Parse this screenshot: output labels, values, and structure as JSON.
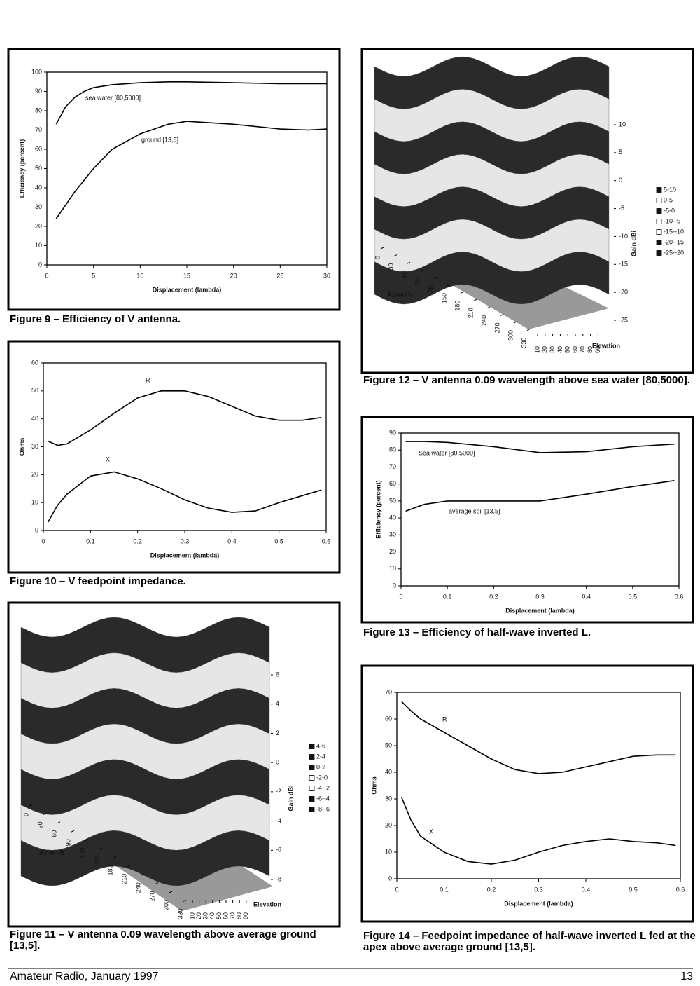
{
  "chart_data": [
    {
      "type": "line",
      "caption": "Figure 9 – Efficiency of V antenna.",
      "xlabel": "Displacement (lambda)",
      "ylabel": "Efficiency (percent)",
      "xlim": [
        0,
        30
      ],
      "xticks": [
        0,
        5,
        10,
        15,
        20,
        25,
        30
      ],
      "ylim": [
        0,
        100
      ],
      "yticks": [
        0,
        10,
        20,
        30,
        40,
        50,
        60,
        70,
        80,
        90,
        100
      ],
      "x": [
        1,
        2,
        3,
        4,
        5,
        7,
        10,
        13,
        15,
        20,
        25,
        28,
        30
      ],
      "series": [
        {
          "name": "sea water [80,5000]",
          "color": "#000000",
          "values": [
            73,
            82,
            87,
            90,
            92,
            93.5,
            94.5,
            95,
            95,
            94.5,
            94,
            94,
            94
          ]
        },
        {
          "name": "ground [13,5]",
          "color": "#000000",
          "values": [
            24,
            31,
            38,
            44,
            50,
            60,
            68,
            73,
            74.5,
            73,
            70.5,
            70,
            70.5
          ]
        }
      ]
    },
    {
      "type": "line",
      "caption": "Figure 10 – V feedpoint impedance.",
      "xlabel": "Displacement (lambda)",
      "ylabel": "Ohms",
      "xlim": [
        0,
        0.6
      ],
      "xticks": [
        0,
        0.1,
        0.2,
        0.3,
        0.4,
        0.5,
        0.6
      ],
      "ylim": [
        0,
        60
      ],
      "yticks": [
        0,
        10,
        20,
        30,
        40,
        50,
        60
      ],
      "x": [
        0.01,
        0.03,
        0.05,
        0.1,
        0.15,
        0.2,
        0.25,
        0.3,
        0.35,
        0.4,
        0.45,
        0.5,
        0.55,
        0.59
      ],
      "series": [
        {
          "name": "R",
          "color": "#000000",
          "values": [
            32,
            30.5,
            31,
            36,
            42,
            47.5,
            50,
            50,
            48,
            44.5,
            41,
            39.5,
            39.5,
            40.5
          ]
        },
        {
          "name": "X",
          "color": "#000000",
          "values": [
            3,
            9,
            13,
            19.5,
            21,
            18.5,
            15,
            11,
            8,
            6.5,
            7,
            10,
            12.5,
            14.5
          ]
        }
      ]
    },
    {
      "type": "surface",
      "caption": "Figure 11 – V antenna 0.09 wavelength above average ground [13,5].",
      "xlabel": "Azimuth",
      "ylabel": "Elevation",
      "zlabel": "Gain dBi",
      "xticks": [
        0,
        30,
        60,
        90,
        120,
        150,
        180,
        210,
        240,
        270,
        300,
        330
      ],
      "yticks": [
        10,
        20,
        30,
        40,
        50,
        60,
        70,
        80,
        90
      ],
      "zlim": [
        -8,
        6
      ],
      "zticks": [
        -8,
        -6,
        -4,
        -2,
        0,
        2,
        4,
        6
      ],
      "legend": [
        {
          "name": "4-6",
          "color": "#111111"
        },
        {
          "name": "2-4",
          "color": "#111111"
        },
        {
          "name": "0-2",
          "color": "#111111"
        },
        {
          "name": "-2-0",
          "color": "#ffffff"
        },
        {
          "name": "-4--2",
          "color": "#ffffff"
        },
        {
          "name": "-6--4",
          "color": "#111111"
        },
        {
          "name": "-8--6",
          "color": "#111111"
        }
      ]
    },
    {
      "type": "surface",
      "caption": "Figure 12 – V antenna 0.09 wavelength above sea water [80,5000].",
      "xlabel": "Azimuth",
      "ylabel": "Elevation",
      "zlabel": "Gain dBi",
      "xticks": [
        0,
        30,
        60,
        90,
        120,
        150,
        180,
        210,
        240,
        270,
        300,
        330
      ],
      "yticks": [
        10,
        20,
        30,
        40,
        50,
        60,
        70,
        80,
        90
      ],
      "zlim": [
        -25,
        10
      ],
      "zticks": [
        -25,
        -20,
        -15,
        -10,
        -5,
        0,
        5,
        10
      ],
      "legend": [
        {
          "name": "5-10",
          "color": "#111111"
        },
        {
          "name": "0-5",
          "color": "#ffffff"
        },
        {
          "name": "-5-0",
          "color": "#111111"
        },
        {
          "name": "-10--5",
          "color": "#ffffff"
        },
        {
          "name": "-15--10",
          "color": "#ffffff"
        },
        {
          "name": "-20--15",
          "color": "#111111"
        },
        {
          "name": "-25--20",
          "color": "#111111"
        }
      ]
    },
    {
      "type": "line",
      "caption": "Figure 13 – Efficiency of half-wave inverted L.",
      "xlabel": "Displacement (lambda)",
      "ylabel": "Efficiency (percent)",
      "xlim": [
        0,
        0.6
      ],
      "xticks": [
        0,
        0.1,
        0.2,
        0.3,
        0.4,
        0.5,
        0.6
      ],
      "ylim": [
        0,
        90
      ],
      "yticks": [
        0,
        10,
        20,
        30,
        40,
        50,
        60,
        70,
        80,
        90
      ],
      "x": [
        0.01,
        0.05,
        0.1,
        0.2,
        0.3,
        0.4,
        0.5,
        0.59
      ],
      "series": [
        {
          "name": "Sea water [80,5000]",
          "color": "#000000",
          "values": [
            85,
            85,
            84.5,
            82,
            78.5,
            79,
            82,
            83.5
          ]
        },
        {
          "name": "average soil [13,5]",
          "color": "#000000",
          "values": [
            44,
            48,
            50,
            50,
            50,
            54,
            58.5,
            62
          ]
        }
      ]
    },
    {
      "type": "line",
      "caption": "Figure 14 – Feedpoint impedance of half-wave inverted L fed at the apex above average ground [13,5].",
      "xlabel": "Displacement (lambda)",
      "ylabel": "Ohms",
      "xlim": [
        0,
        0.6
      ],
      "xticks": [
        0,
        0.1,
        0.2,
        0.3,
        0.4,
        0.5,
        0.6
      ],
      "ylim": [
        0,
        70
      ],
      "yticks": [
        0,
        10,
        20,
        30,
        40,
        50,
        60,
        70
      ],
      "x": [
        0.01,
        0.03,
        0.05,
        0.1,
        0.15,
        0.2,
        0.25,
        0.3,
        0.35,
        0.4,
        0.45,
        0.5,
        0.55,
        0.59
      ],
      "series": [
        {
          "name": "R",
          "color": "#000000",
          "values": [
            66.5,
            63,
            60,
            55,
            50,
            45,
            41,
            39.5,
            40,
            42,
            44,
            46,
            46.5,
            46.5
          ]
        },
        {
          "name": "X",
          "color": "#000000",
          "values": [
            30.5,
            22,
            16,
            10,
            6.5,
            5.5,
            7,
            10,
            12.5,
            14,
            15,
            14,
            13.5,
            12.5
          ]
        }
      ]
    }
  ],
  "footer": {
    "left": "Amateur Radio, January 1997",
    "page": "13"
  }
}
